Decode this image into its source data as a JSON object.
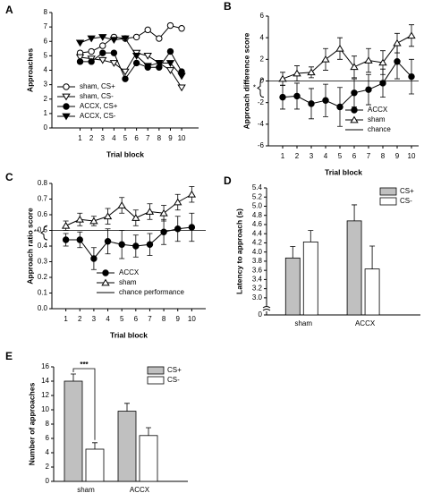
{
  "chart_data": [
    {
      "type": "line",
      "label": "A",
      "ylabel": "Approaches",
      "xlabel": "Trial block",
      "x": [
        1,
        2,
        3,
        4,
        5,
        6,
        7,
        8,
        9,
        10
      ],
      "xlim": [
        -1.5,
        11.5
      ],
      "xticks": [
        1,
        2,
        3,
        4,
        5,
        6,
        7,
        8,
        9,
        10
      ],
      "ylim": [
        0,
        8
      ],
      "yticks": [
        0,
        1,
        2,
        3,
        4,
        5,
        6,
        7,
        8
      ],
      "legend": "lower left",
      "series": [
        {
          "name": "sham, CS+",
          "color": "#000000",
          "marker": "circle",
          "filled": false,
          "values": [
            5.2,
            5.3,
            5.7,
            6.3,
            6.2,
            6.3,
            6.8,
            6.2,
            7.1,
            6.9
          ]
        },
        {
          "name": "sham, CS-",
          "color": "#000000",
          "marker": "triangle-down",
          "filled": false,
          "values": [
            4.9,
            4.8,
            4.7,
            4.5,
            3.9,
            5.2,
            5.0,
            4.5,
            4.0,
            2.8
          ]
        },
        {
          "name": "ACCX, CS+",
          "color": "#000000",
          "marker": "circle",
          "filled": true,
          "values": [
            4.6,
            4.6,
            5.2,
            5.2,
            3.4,
            4.5,
            4.2,
            4.2,
            5.3,
            3.9
          ]
        },
        {
          "name": "ACCX, CS-",
          "color": "#000000",
          "marker": "triangle-down",
          "filled": true,
          "values": [
            5.9,
            6.2,
            6.3,
            6.1,
            6.2,
            5.0,
            4.3,
            4.5,
            4.5,
            3.6
          ]
        }
      ]
    },
    {
      "type": "line",
      "label": "B",
      "ylabel": "Approach difference score",
      "xlabel": "Trial block",
      "x": [
        1,
        2,
        3,
        4,
        5,
        6,
        7,
        8,
        9,
        10
      ],
      "xlim": [
        0,
        10.5
      ],
      "xticks": [
        1,
        2,
        3,
        4,
        5,
        6,
        7,
        8,
        9,
        10
      ],
      "ylim": [
        -6,
        6
      ],
      "yticks": [
        -6,
        -4,
        -2,
        0,
        2,
        4,
        6
      ],
      "legend": "lower right",
      "annotation": "*",
      "reference_line": {
        "name": "chance",
        "value": 0
      },
      "series": [
        {
          "name": "ACCX",
          "color": "#000000",
          "marker": "circle",
          "filled": true,
          "values": [
            -1.5,
            -1.4,
            -2.1,
            -1.8,
            -2.4,
            -1.1,
            -0.8,
            -0.2,
            1.8,
            0.4
          ],
          "errors": [
            1.1,
            1.2,
            1.4,
            1.5,
            1.8,
            1.3,
            1.4,
            1.3,
            1.6,
            1.6
          ]
        },
        {
          "name": "sham",
          "color": "#000000",
          "marker": "triangle-up",
          "filled": false,
          "values": [
            0.2,
            0.7,
            0.8,
            2.0,
            3.0,
            1.3,
            1.9,
            1.7,
            3.5,
            4.2
          ],
          "errors": [
            0.6,
            0.7,
            0.5,
            1.0,
            1.0,
            1.0,
            1.1,
            1.1,
            0.9,
            1.0
          ]
        }
      ]
    },
    {
      "type": "line",
      "label": "C",
      "ylabel": "Approach ratio score",
      "xlabel": "Trial block",
      "x": [
        1,
        2,
        3,
        4,
        5,
        6,
        7,
        8,
        9,
        10
      ],
      "xlim": [
        0,
        11
      ],
      "xticks": [
        1,
        2,
        3,
        4,
        5,
        6,
        7,
        8,
        9,
        10
      ],
      "ylim": [
        0,
        0.8
      ],
      "yticks": [
        {
          "value": 0,
          "label": "0.0"
        },
        0.1,
        0.2,
        0.3,
        0.4,
        0.5,
        0.6,
        0.7,
        0.8
      ],
      "legend": "lower center",
      "annotation": "**",
      "reference_line": {
        "name": "chance performance",
        "value": 0.5
      },
      "series": [
        {
          "name": "ACCX",
          "color": "#000000",
          "marker": "circle",
          "filled": true,
          "values": [
            0.44,
            0.44,
            0.32,
            0.43,
            0.41,
            0.4,
            0.41,
            0.49,
            0.51,
            0.52
          ],
          "errors": [
            0.04,
            0.05,
            0.07,
            0.08,
            0.09,
            0.07,
            0.07,
            0.08,
            0.08,
            0.09
          ]
        },
        {
          "name": "sham",
          "color": "#000000",
          "marker": "triangle-up",
          "filled": false,
          "values": [
            0.53,
            0.57,
            0.56,
            0.59,
            0.66,
            0.58,
            0.62,
            0.61,
            0.68,
            0.73
          ],
          "errors": [
            0.03,
            0.04,
            0.03,
            0.05,
            0.05,
            0.05,
            0.05,
            0.05,
            0.05,
            0.05
          ]
        }
      ]
    },
    {
      "type": "bar",
      "label": "D",
      "ylabel": "Latency to approach (s)",
      "axis_break": true,
      "categories": [
        "sham",
        "ACCX"
      ],
      "ylim": [
        2.9,
        5.4
      ],
      "yticks": [
        0,
        {
          "value": 3,
          "label": "3.0"
        },
        3.2,
        3.4,
        3.6,
        3.8,
        {
          "value": 4,
          "label": "4.0"
        },
        4.2,
        4.4,
        4.6,
        4.8,
        {
          "value": 5,
          "label": "5.0"
        },
        5.2,
        5.4
      ],
      "legend": "upper right",
      "series": [
        {
          "name": "CS+",
          "color": "#c0c0c0",
          "values": [
            3.87,
            4.68
          ],
          "errors": [
            0.25,
            0.35
          ]
        },
        {
          "name": "CS-",
          "color": "#ffffff",
          "values": [
            4.22,
            3.63
          ],
          "errors": [
            0.25,
            0.5
          ]
        }
      ]
    },
    {
      "type": "bar",
      "label": "E",
      "ylabel": "Number of approaches",
      "categories": [
        "sham",
        "ACCX"
      ],
      "ylim": [
        0,
        16
      ],
      "yticks": [
        0,
        2,
        4,
        6,
        8,
        10,
        12,
        14,
        16
      ],
      "legend": "upper right",
      "annotation": "***",
      "series": [
        {
          "name": "CS+",
          "color": "#c0c0c0",
          "values": [
            14.0,
            9.8
          ],
          "errors": [
            1.0,
            1.1
          ]
        },
        {
          "name": "CS-",
          "color": "#ffffff",
          "values": [
            4.5,
            6.4
          ],
          "errors": [
            0.9,
            1.1
          ]
        }
      ]
    }
  ]
}
